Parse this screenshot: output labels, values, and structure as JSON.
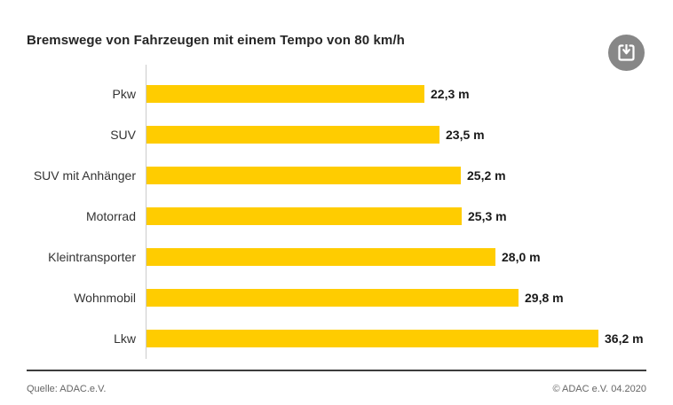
{
  "header": {
    "title": "Bremswege von Fahrzeugen mit einem Tempo von 80 km/h"
  },
  "toolbar": {
    "download_icon": "download-icon"
  },
  "chart_data": {
    "type": "bar",
    "orientation": "horizontal",
    "title": "Bremswege von Fahrzeugen mit einem Tempo von 80 km/h",
    "categories": [
      "Pkw",
      "SUV",
      "SUV mit Anhänger",
      "Motorrad",
      "Kleintransporter",
      "Wohnmobil",
      "Lkw"
    ],
    "values": [
      22.3,
      23.5,
      25.2,
      25.3,
      28.0,
      29.8,
      36.2
    ],
    "value_labels": [
      "22,3 m",
      "23,5 m",
      "25,2 m",
      "25,3 m",
      "28,0 m",
      "29,8 m",
      "36,2 m"
    ],
    "unit": "m",
    "xlabel": "",
    "ylabel": "",
    "xlim": [
      0,
      38
    ],
    "grid": false,
    "legend": false,
    "bar_color": "#FFCC00",
    "axis_color": "#cccccc"
  },
  "footer": {
    "source": "Quelle: ADAC.e.V.",
    "copyright": "© ADAC e.V. 04.2020"
  }
}
